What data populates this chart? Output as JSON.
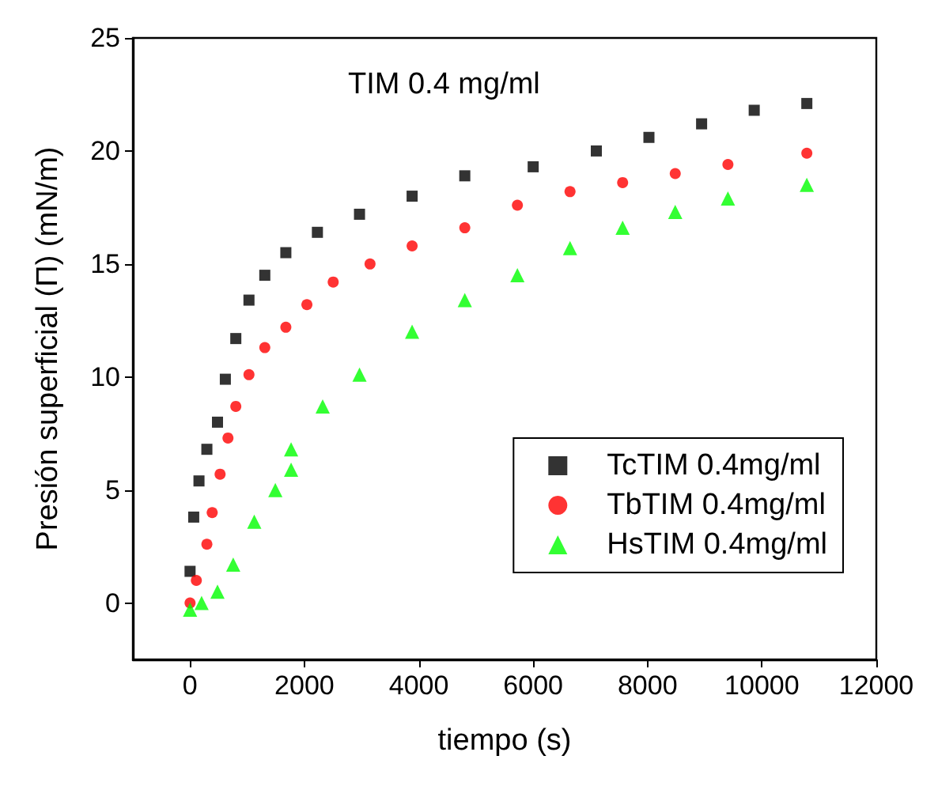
{
  "chart_data": {
    "type": "scatter",
    "xlabel": "tiempo (s)",
    "ylabel": "Presión superficial (Π) (mN/m)",
    "annotations": [
      "TIM 0.4 mg/ml"
    ],
    "xlim": [
      -1000,
      12000
    ],
    "xticks": [
      0,
      2000,
      4000,
      6000,
      8000,
      10000,
      12000
    ],
    "ylim": [
      -2.5,
      25
    ],
    "yticks": [
      0,
      5,
      10,
      15,
      20,
      25
    ],
    "grid": false,
    "legend": "bottom right",
    "series": [
      {
        "name": "TcTIM 0.4mg/ml",
        "color": "#000000",
        "marker": "square",
        "x": [
          0,
          64,
          156,
          294,
          480,
          617,
          800,
          1030,
          1307,
          1675,
          2227,
          2963,
          3883,
          4804,
          6000,
          7104,
          8024,
          8945,
          9865,
          10785
        ],
        "values": [
          1.4,
          3.8,
          5.4,
          6.8,
          8.0,
          9.9,
          11.7,
          13.4,
          14.5,
          15.5,
          16.4,
          17.2,
          18.0,
          18.9,
          19.3,
          20.0,
          20.6,
          21.2,
          21.8,
          22.1
        ]
      },
      {
        "name": "TbTIM 0.4mg/ml",
        "color": "#ff0000",
        "marker": "circle",
        "x": [
          0,
          110,
          294,
          387,
          525,
          663,
          800,
          1030,
          1307,
          1675,
          2043,
          2503,
          3147,
          3883,
          4804,
          5724,
          6644,
          7564,
          8484,
          9405,
          10785
        ],
        "values": [
          0,
          1.0,
          2.6,
          4.0,
          5.7,
          7.3,
          8.7,
          10.1,
          11.3,
          12.2,
          13.2,
          14.2,
          15.0,
          15.8,
          16.6,
          17.6,
          18.2,
          18.6,
          19.0,
          19.4,
          19.9
        ]
      },
      {
        "name": "HsTIM 0.4mg/ml",
        "color": "#00ff00",
        "marker": "triangle",
        "x": [
          0,
          202,
          480,
          755,
          1123,
          1491,
          1767,
          1767,
          2319,
          2963,
          3883,
          4804,
          5724,
          6644,
          7564,
          8484,
          9405,
          10785
        ],
        "values": [
          -0.3,
          0.0,
          0.5,
          1.7,
          3.6,
          5.0,
          5.9,
          6.8,
          8.7,
          10.1,
          12.0,
          13.4,
          14.5,
          15.7,
          16.6,
          17.3,
          17.9,
          18.5
        ]
      }
    ]
  }
}
